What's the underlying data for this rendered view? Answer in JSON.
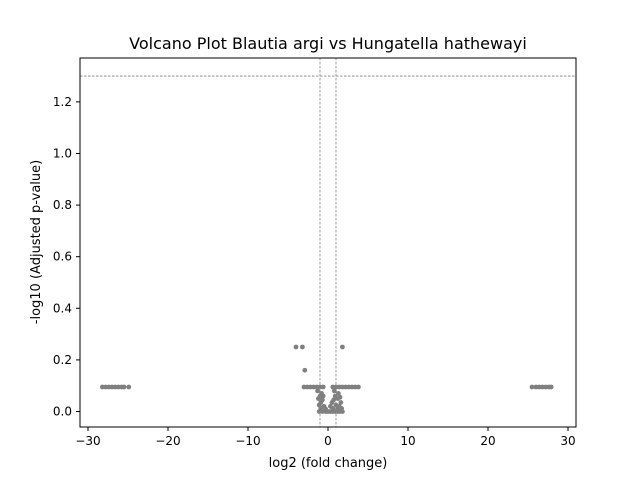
{
  "chart_data": {
    "type": "scatter",
    "title": "Volcano Plot Blautia argi vs Hungatella hathewayi",
    "xlabel": "log2 (fold change)",
    "ylabel": "-log10 (Adjusted p-value)",
    "xlim": [
      -31,
      31
    ],
    "ylim": [
      -0.06,
      1.37
    ],
    "x_ticks": [
      -30,
      -20,
      -10,
      0,
      10,
      20,
      30
    ],
    "x_tick_labels": [
      "−30",
      "−20",
      "−10",
      "0",
      "10",
      "20",
      "30"
    ],
    "y_ticks": [
      0.0,
      0.2,
      0.4,
      0.6,
      0.8,
      1.0,
      1.2
    ],
    "y_tick_labels": [
      "0.0",
      "0.2",
      "0.4",
      "0.6",
      "0.8",
      "1.0",
      "1.2"
    ],
    "grid": false,
    "point_color": "#808080",
    "threshold_color": "#808080",
    "threshold_lines": {
      "vertical": [
        -1,
        1
      ],
      "horizontal": [
        1.3
      ]
    },
    "series": [
      {
        "values": [
          {
            "x": -4.0,
            "y": 0.25
          },
          {
            "x": -3.2,
            "y": 0.25
          },
          {
            "x": 1.8,
            "y": 0.25
          },
          {
            "x": -2.9,
            "y": 0.16
          },
          {
            "x": -28.2,
            "y": 0.095
          },
          {
            "x": -27.8,
            "y": 0.095
          },
          {
            "x": -27.4,
            "y": 0.095
          },
          {
            "x": -27.0,
            "y": 0.095
          },
          {
            "x": -26.6,
            "y": 0.095
          },
          {
            "x": -26.2,
            "y": 0.095
          },
          {
            "x": -25.8,
            "y": 0.095
          },
          {
            "x": -25.5,
            "y": 0.095
          },
          {
            "x": -24.9,
            "y": 0.095
          },
          {
            "x": 25.5,
            "y": 0.095
          },
          {
            "x": 26.0,
            "y": 0.095
          },
          {
            "x": 26.4,
            "y": 0.095
          },
          {
            "x": 26.8,
            "y": 0.095
          },
          {
            "x": 27.2,
            "y": 0.095
          },
          {
            "x": 27.6,
            "y": 0.095
          },
          {
            "x": 27.9,
            "y": 0.095
          },
          {
            "x": -3.0,
            "y": 0.095
          },
          {
            "x": -2.6,
            "y": 0.095
          },
          {
            "x": -2.2,
            "y": 0.095
          },
          {
            "x": -1.8,
            "y": 0.095
          },
          {
            "x": -1.4,
            "y": 0.095
          },
          {
            "x": -1.0,
            "y": 0.095
          },
          {
            "x": -0.6,
            "y": 0.095
          },
          {
            "x": 0.6,
            "y": 0.095
          },
          {
            "x": 1.0,
            "y": 0.095
          },
          {
            "x": 1.4,
            "y": 0.095
          },
          {
            "x": 1.8,
            "y": 0.095
          },
          {
            "x": 2.2,
            "y": 0.095
          },
          {
            "x": 2.6,
            "y": 0.095
          },
          {
            "x": 3.0,
            "y": 0.095
          },
          {
            "x": 3.4,
            "y": 0.095
          },
          {
            "x": 3.8,
            "y": 0.095
          },
          {
            "x": -1.3,
            "y": 0.08
          },
          {
            "x": -0.8,
            "y": 0.07
          },
          {
            "x": 0.8,
            "y": 0.08
          },
          {
            "x": 1.3,
            "y": 0.07
          },
          {
            "x": -1.0,
            "y": 0.06
          },
          {
            "x": -0.6,
            "y": 0.06
          },
          {
            "x": 0.9,
            "y": 0.06
          },
          {
            "x": 1.5,
            "y": 0.055
          },
          {
            "x": -1.2,
            "y": 0.05
          },
          {
            "x": -0.7,
            "y": 0.045
          },
          {
            "x": 0.7,
            "y": 0.045
          },
          {
            "x": 1.2,
            "y": 0.05
          },
          {
            "x": -0.9,
            "y": 0.035
          },
          {
            "x": 0.5,
            "y": 0.035
          },
          {
            "x": 1.6,
            "y": 0.035
          },
          {
            "x": -1.1,
            "y": 0.025
          },
          {
            "x": -0.5,
            "y": 0.02
          },
          {
            "x": 0.3,
            "y": 0.02
          },
          {
            "x": 1.0,
            "y": 0.025
          },
          {
            "x": 1.4,
            "y": 0.02
          },
          {
            "x": -0.9,
            "y": 0.012
          },
          {
            "x": -0.3,
            "y": 0.01
          },
          {
            "x": 0.6,
            "y": 0.012
          },
          {
            "x": 1.2,
            "y": 0.01
          },
          {
            "x": 1.7,
            "y": 0.012
          },
          {
            "x": -1.1,
            "y": 0.0
          },
          {
            "x": -0.7,
            "y": 0.0
          },
          {
            "x": -0.3,
            "y": 0.0
          },
          {
            "x": 0.0,
            "y": 0.0
          },
          {
            "x": 0.3,
            "y": 0.0
          },
          {
            "x": 0.6,
            "y": 0.0
          },
          {
            "x": 0.9,
            "y": 0.0
          },
          {
            "x": 1.2,
            "y": 0.0
          },
          {
            "x": 1.5,
            "y": 0.0
          },
          {
            "x": 1.8,
            "y": 0.0
          }
        ]
      }
    ]
  }
}
